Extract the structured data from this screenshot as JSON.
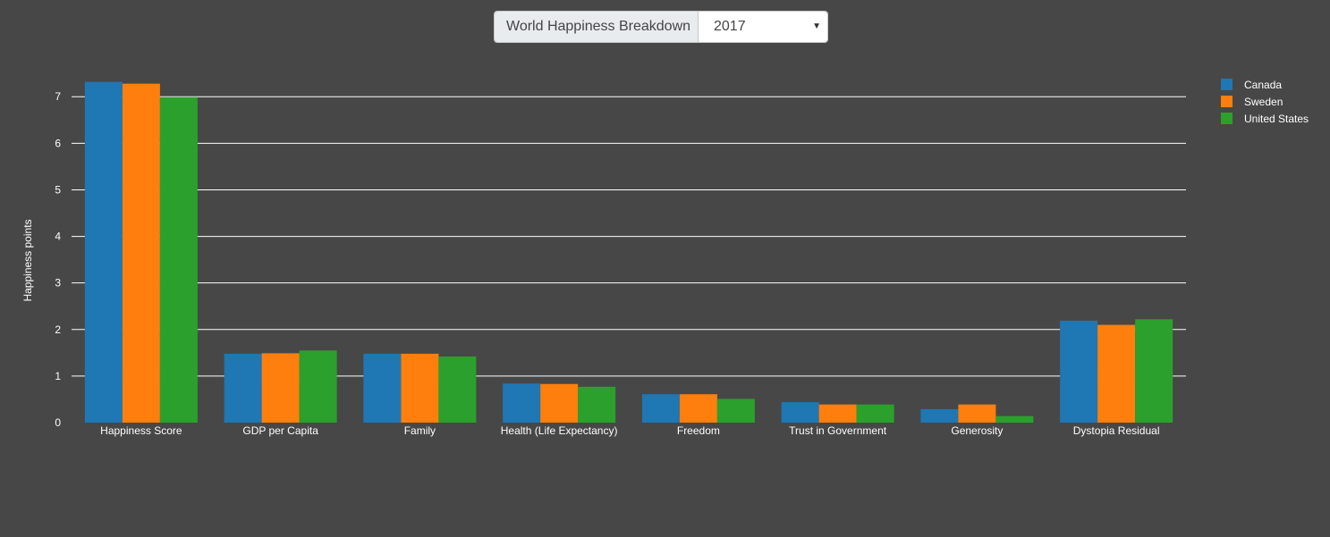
{
  "selector": {
    "label": "World Happiness Breakdown",
    "selected": "2017"
  },
  "colors": {
    "background": "#474747",
    "grid": "#ffffff",
    "text": "#ffffff"
  },
  "chart_data": {
    "type": "bar",
    "title": "",
    "xlabel": "",
    "ylabel": "Happiness points",
    "ylim": [
      0,
      7.35
    ],
    "yticks": [
      0,
      1,
      2,
      3,
      4,
      5,
      6,
      7
    ],
    "grid": true,
    "legend_position": "top-right",
    "categories": [
      "Happiness Score",
      "GDP per Capita",
      "Family",
      "Health (Life Expectancy)",
      "Freedom",
      "Trust in Government",
      "Generosity",
      "Dystopia Residual"
    ],
    "series": [
      {
        "name": "Canada",
        "color": "#1f77b4",
        "values": [
          7.32,
          1.48,
          1.48,
          0.84,
          0.61,
          0.44,
          0.29,
          2.19
        ]
      },
      {
        "name": "Sweden",
        "color": "#ff7f0e",
        "values": [
          7.28,
          1.49,
          1.48,
          0.83,
          0.61,
          0.39,
          0.39,
          2.1
        ]
      },
      {
        "name": "United States",
        "color": "#2ca02c",
        "values": [
          6.99,
          1.55,
          1.42,
          0.77,
          0.51,
          0.39,
          0.14,
          2.22
        ]
      }
    ]
  }
}
